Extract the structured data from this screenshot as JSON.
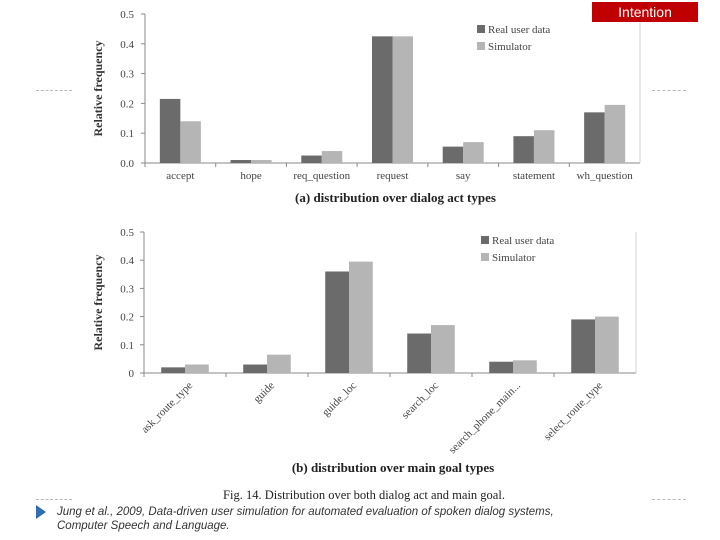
{
  "header": {
    "badge_label": "Intention"
  },
  "figure_caption": "Fig. 14.  Distribution over both dialog act and main goal.",
  "citation": {
    "line1": "Jung et al., 2009, Data-driven user simulation for automated evaluation of spoken dialog systems,",
    "line2": "Computer Speech and Language."
  },
  "colors": {
    "real": "#6b6b6b",
    "sim": "#b5b5b5",
    "accent": "#c00000",
    "bullet": "#2f6fb0"
  },
  "chart_data": [
    {
      "type": "bar",
      "title": "(a) distribution over dialog act types",
      "xlabel": "",
      "ylabel": "Relative frequency",
      "ylim": [
        0,
        0.5
      ],
      "yticks": [
        "0.0",
        "0.1",
        "0.2",
        "0.3",
        "0.4",
        "0.5"
      ],
      "legend_position": "top-right",
      "categories": [
        "accept",
        "hope",
        "req_question",
        "request",
        "say",
        "statement",
        "wh_question"
      ],
      "series": [
        {
          "name": "Real user data",
          "values": [
            0.215,
            0.01,
            0.025,
            0.425,
            0.055,
            0.09,
            0.17
          ]
        },
        {
          "name": "Simulator",
          "values": [
            0.14,
            0.01,
            0.04,
            0.425,
            0.07,
            0.11,
            0.195
          ]
        }
      ]
    },
    {
      "type": "bar",
      "title": "(b) distribution over main goal types",
      "xlabel": "",
      "ylabel": "Relative frequency",
      "ylim": [
        0,
        0.5
      ],
      "yticks": [
        "0",
        "0.1",
        "0.2",
        "0.3",
        "0.4",
        "0.5"
      ],
      "legend_position": "top-right",
      "categories": [
        "ask_route_type",
        "guide",
        "guide_loc",
        "search_loc",
        "search_phone_main...",
        "select_route_type"
      ],
      "series": [
        {
          "name": "Real user data",
          "values": [
            0.02,
            0.03,
            0.36,
            0.14,
            0.04,
            0.19
          ]
        },
        {
          "name": "Simulator",
          "values": [
            0.03,
            0.065,
            0.395,
            0.17,
            0.045,
            0.2
          ]
        }
      ]
    }
  ]
}
